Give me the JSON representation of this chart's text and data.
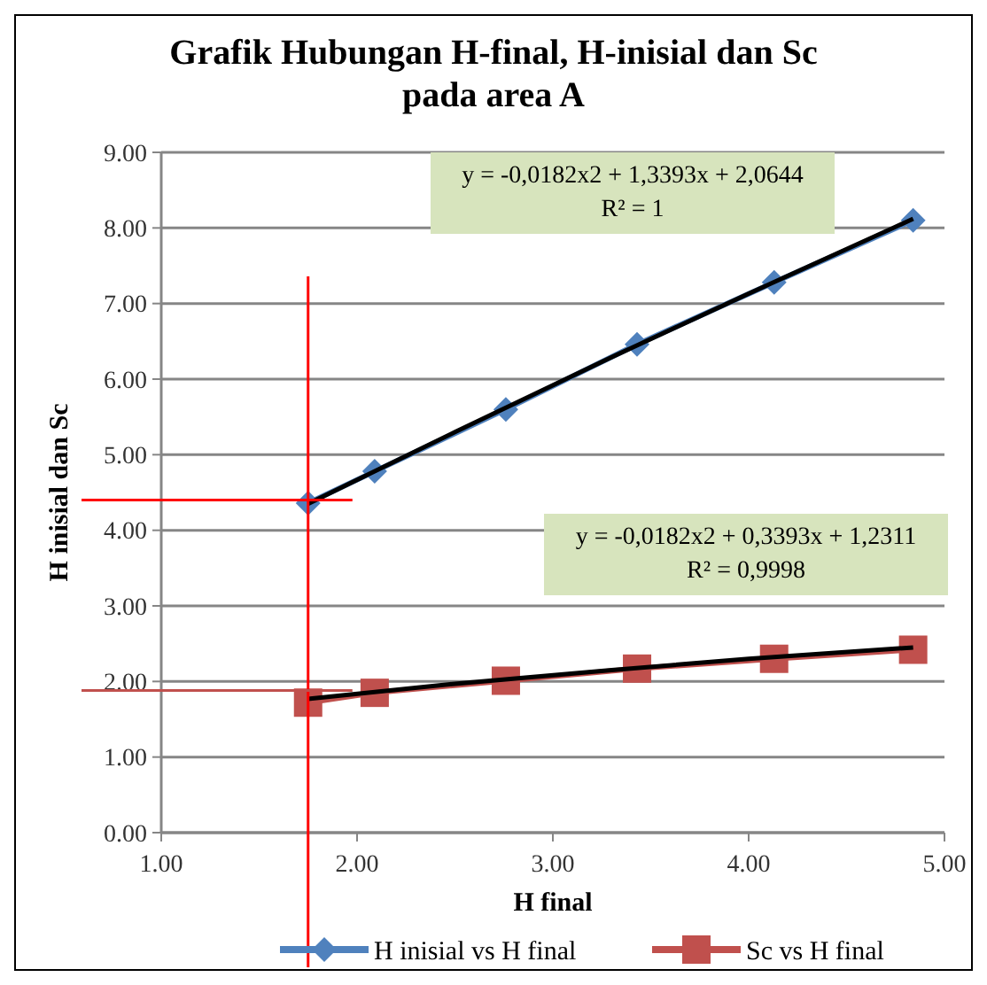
{
  "chart_data": {
    "type": "scatter",
    "title": "Grafik Hubungan H-final, H-inisial dan Sc pada area A",
    "xlabel": "H final",
    "ylabel": "H inisial dan Sc",
    "xlim": [
      1,
      5
    ],
    "ylim": [
      0,
      9
    ],
    "xticks": [
      {
        "value": 1,
        "label": "1.00"
      },
      {
        "value": 2,
        "label": "2.00"
      },
      {
        "value": 3,
        "label": "3.00"
      },
      {
        "value": 4,
        "label": "4.00"
      },
      {
        "value": 5,
        "label": "5.00"
      }
    ],
    "yticks": [
      {
        "value": 0,
        "label": "0.00"
      },
      {
        "value": 1,
        "label": "1.00"
      },
      {
        "value": 2,
        "label": "2.00"
      },
      {
        "value": 3,
        "label": "3.00"
      },
      {
        "value": 4,
        "label": "4.00"
      },
      {
        "value": 5,
        "label": "5.00"
      },
      {
        "value": 6,
        "label": "6.00"
      },
      {
        "value": 7,
        "label": "7.00"
      },
      {
        "value": 8,
        "label": "8.00"
      },
      {
        "value": 9,
        "label": "9.00"
      }
    ],
    "grid": "y",
    "legend": "bottom",
    "line_style": "solid",
    "series": [
      {
        "name": "H inisial vs H final",
        "type": "line",
        "marker": "diamond",
        "color": "#4f81bd",
        "x": [
          1.75,
          2.09,
          2.76,
          3.43,
          4.13,
          4.84
        ],
        "values": [
          4.36,
          4.78,
          5.6,
          6.46,
          7.28,
          8.1
        ]
      },
      {
        "name": "Sc vs H final",
        "type": "line",
        "marker": "square",
        "color": "#c0504d",
        "x": [
          1.75,
          2.09,
          2.76,
          3.43,
          4.13,
          4.84
        ],
        "values": [
          1.72,
          1.85,
          2.01,
          2.17,
          2.3,
          2.42
        ]
      },
      {
        "type": "line",
        "marker": "none",
        "color": "#000000",
        "x": [
          1.75,
          2.5,
          3.3,
          4,
          4.84
        ],
        "values": [
          4.35,
          5.3,
          6.29,
          7.13,
          8.12
        ]
      },
      {
        "type": "line",
        "marker": "none",
        "color": "#000000",
        "x": [
          1.75,
          2.5,
          3.3,
          4,
          4.84
        ],
        "values": [
          1.77,
          1.97,
          2.15,
          2.3,
          2.45
        ]
      }
    ],
    "ref_lines": [
      {
        "axis": "x",
        "value": 1.75,
        "color": "#ff0000"
      },
      {
        "axis": "y",
        "value": 4.4,
        "color": "#ff0000"
      },
      {
        "axis": "y",
        "value": 1.88,
        "color": "#c0504d"
      }
    ],
    "annotations": [
      "y = -0,0182x2  + 1,3393x  + 2,0644\nR² = 1",
      "y = -0,0182x2  + 0,3393x  + 1,2311\nR² = 0,9998"
    ]
  }
}
